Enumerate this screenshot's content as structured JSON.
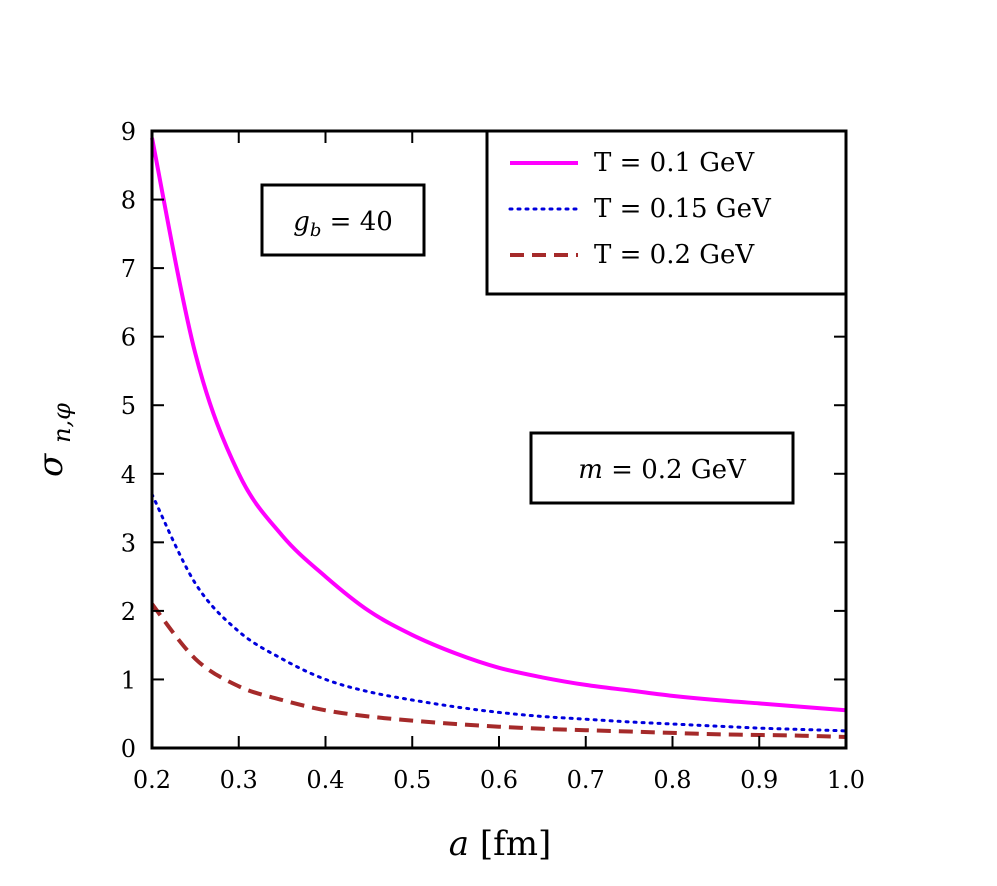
{
  "chart_data": {
    "type": "line",
    "xlabel": "a [fm]",
    "ylabel": "σn,φ",
    "xlim": [
      0.2,
      1.0
    ],
    "ylim": [
      0,
      9
    ],
    "xticks": [
      "0.2",
      "0.3",
      "0.4",
      "0.5",
      "0.6",
      "0.7",
      "0.8",
      "0.9",
      "1.0"
    ],
    "yticks": [
      "0",
      "1",
      "2",
      "3",
      "4",
      "5",
      "6",
      "7",
      "8",
      "9"
    ],
    "grid": false,
    "legend_position": "top-right",
    "annotations": [
      {
        "text": "g_b = 40"
      },
      {
        "text": "m = 0.2 GeV"
      }
    ],
    "series": [
      {
        "name": "T = 0.1 GeV",
        "style": "solid",
        "color": "#ff00ff",
        "x": [
          0.2,
          0.25,
          0.3,
          0.35,
          0.4,
          0.45,
          0.5,
          0.55,
          0.6,
          0.65,
          0.7,
          0.75,
          0.8,
          0.85,
          0.9,
          0.95,
          1.0
        ],
        "y": [
          8.9,
          5.75,
          4.0,
          3.1,
          2.5,
          2.0,
          1.65,
          1.38,
          1.17,
          1.03,
          0.92,
          0.84,
          0.76,
          0.7,
          0.65,
          0.6,
          0.55
        ]
      },
      {
        "name": "T = 0.15 GeV",
        "style": "dotted",
        "color": "#0000dd",
        "x": [
          0.2,
          0.25,
          0.3,
          0.35,
          0.4,
          0.45,
          0.5,
          0.55,
          0.6,
          0.65,
          0.7,
          0.75,
          0.8,
          0.85,
          0.9,
          0.95,
          1.0
        ],
        "y": [
          3.7,
          2.4,
          1.7,
          1.3,
          1.0,
          0.82,
          0.7,
          0.6,
          0.52,
          0.46,
          0.42,
          0.38,
          0.35,
          0.32,
          0.29,
          0.27,
          0.25
        ]
      },
      {
        "name": "T = 0.2 GeV",
        "style": "dashed",
        "color": "#a52a2a",
        "x": [
          0.2,
          0.25,
          0.3,
          0.35,
          0.4,
          0.45,
          0.5,
          0.55,
          0.6,
          0.65,
          0.7,
          0.75,
          0.8,
          0.85,
          0.9,
          0.95,
          1.0
        ],
        "y": [
          2.1,
          1.3,
          0.9,
          0.7,
          0.55,
          0.46,
          0.4,
          0.35,
          0.31,
          0.28,
          0.26,
          0.24,
          0.22,
          0.2,
          0.19,
          0.18,
          0.16
        ]
      }
    ]
  }
}
